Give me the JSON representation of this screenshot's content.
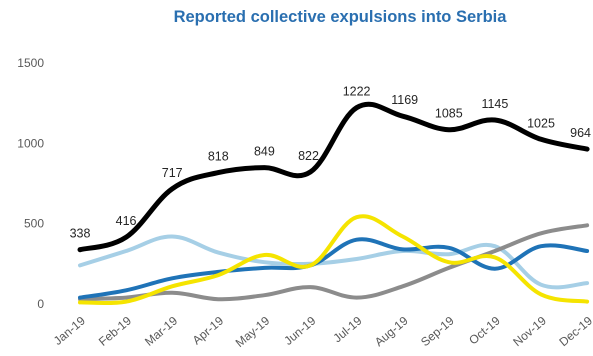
{
  "chart_data": {
    "type": "line",
    "title": "Reported collective expulsions into Serbia",
    "xlabel": "",
    "ylabel": "",
    "ylim": [
      0,
      1500
    ],
    "y_ticks": [
      0,
      500,
      1000,
      1500
    ],
    "grid": false,
    "legend": "none",
    "categories": [
      "Jan-19",
      "Feb-19",
      "Mar-19",
      "Apr-19",
      "May-19",
      "Jun-19",
      "Jul-19",
      "Aug-19",
      "Sep-19",
      "Oct-19",
      "Nov-19",
      "Dec-19"
    ],
    "series": [
      {
        "color": "#000000",
        "values": [
          338,
          416,
          717,
          818,
          849,
          822,
          1222,
          1169,
          1085,
          1145,
          1025,
          964
        ],
        "show_labels": true
      },
      {
        "color": "#a6cfe6",
        "values": [
          240,
          330,
          420,
          320,
          260,
          250,
          280,
          330,
          310,
          360,
          120,
          130
        ],
        "show_labels": false
      },
      {
        "color": "#1f73b7",
        "values": [
          40,
          85,
          160,
          200,
          225,
          240,
          400,
          340,
          350,
          220,
          360,
          330
        ],
        "show_labels": false
      },
      {
        "color": "#8c8c8c",
        "values": [
          30,
          40,
          70,
          30,
          55,
          105,
          40,
          110,
          225,
          330,
          440,
          490
        ],
        "show_labels": false
      },
      {
        "color": "#f5e400",
        "values": [
          10,
          15,
          110,
          180,
          305,
          240,
          540,
          420,
          260,
          290,
          60,
          15
        ],
        "show_labels": false
      }
    ]
  }
}
